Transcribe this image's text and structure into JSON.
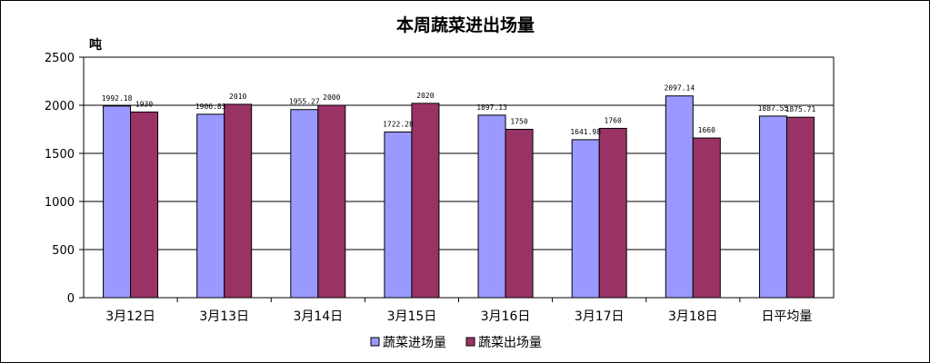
{
  "chart_data": {
    "type": "bar",
    "title": "本周蔬菜进出场量",
    "ylabel": "吨",
    "xlabel": "",
    "ylim": [
      0,
      2500
    ],
    "yticks": [
      0,
      500,
      1000,
      1500,
      2000,
      2500
    ],
    "grid": true,
    "legend_position": "bottom",
    "categories": [
      "3月12日",
      "3月13日",
      "3月14日",
      "3月15日",
      "3月16日",
      "3月17日",
      "3月18日",
      "日平均量"
    ],
    "series": [
      {
        "name": "蔬菜进场量",
        "color": "#9999ff",
        "values": [
          1992.18,
          1906.83,
          1955.27,
          1722.28,
          1897.13,
          1641.98,
          2097.14,
          1887.55
        ],
        "labels": [
          "1992.18",
          "1906.83",
          "1955.27",
          "1722.28",
          "1897.13",
          "1641.98",
          "2097.14",
          "1887.55"
        ]
      },
      {
        "name": "蔬菜出场量",
        "color": "#993366",
        "values": [
          1930,
          2010,
          2000,
          2020,
          1750,
          1760,
          1660,
          1875.71
        ],
        "labels": [
          "1930",
          "2010",
          "2000",
          "2020",
          "1750",
          "1760",
          "1660",
          "1875.71"
        ]
      }
    ]
  }
}
